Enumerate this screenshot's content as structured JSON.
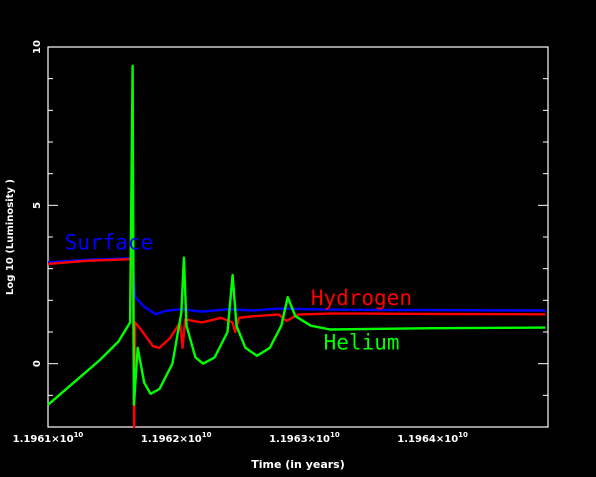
{
  "chart_data": {
    "type": "line",
    "title": "",
    "xlabel": "Time (in years)",
    "ylabel": "Log 10 (Luminosity )",
    "xlim": [
      11961000000,
      11964900000
    ],
    "ylim": [
      -2,
      10
    ],
    "x_ticks": [
      {
        "value": 11961000000,
        "mantissa": "1.1961×10",
        "exp": "10"
      },
      {
        "value": 11962000000,
        "mantissa": "1.1962×10",
        "exp": "10"
      },
      {
        "value": 11963000000,
        "mantissa": "1.1963×10",
        "exp": "10"
      },
      {
        "value": 11964000000,
        "mantissa": "1.1964×10",
        "exp": "10"
      }
    ],
    "y_ticks": [
      0,
      5,
      10
    ],
    "grid": false,
    "colors": {
      "background": "#000000",
      "axes": "#ffffff"
    },
    "series": [
      {
        "name": "Surface",
        "color": "#0000ff",
        "points": [
          [
            11961000000,
            3.2
          ],
          [
            11961300000,
            3.28
          ],
          [
            11961660000,
            3.33
          ],
          [
            11961680000,
            2.1
          ],
          [
            11961750000,
            1.8
          ],
          [
            11961840000,
            1.56
          ],
          [
            11961920000,
            1.67
          ],
          [
            11962040000,
            1.72
          ],
          [
            11962200000,
            1.64
          ],
          [
            11962400000,
            1.72
          ],
          [
            11962600000,
            1.68
          ],
          [
            11962800000,
            1.74
          ],
          [
            11963000000,
            1.72
          ],
          [
            11963400000,
            1.7
          ],
          [
            11964000000,
            1.69
          ],
          [
            11964880000,
            1.68
          ]
        ]
      },
      {
        "name": "Hydrogen",
        "color": "#ff0000",
        "points": [
          [
            11961000000,
            3.15
          ],
          [
            11961300000,
            3.25
          ],
          [
            11961655000,
            3.3
          ],
          [
            11961665000,
            1.5
          ],
          [
            11961672000,
            -2.0
          ],
          [
            11961680000,
            1.3
          ],
          [
            11961720000,
            1.1
          ],
          [
            11961820000,
            0.55
          ],
          [
            11961870000,
            0.5
          ],
          [
            11961950000,
            0.8
          ],
          [
            11962030000,
            1.3
          ],
          [
            11962050000,
            0.5
          ],
          [
            11962070000,
            1.4
          ],
          [
            11962200000,
            1.3
          ],
          [
            11962350000,
            1.45
          ],
          [
            11962440000,
            1.3
          ],
          [
            11962460000,
            1.0
          ],
          [
            11962490000,
            1.45
          ],
          [
            11962600000,
            1.5
          ],
          [
            11962800000,
            1.55
          ],
          [
            11962860000,
            1.35
          ],
          [
            11962950000,
            1.55
          ],
          [
            11963200000,
            1.58
          ],
          [
            11963500000,
            1.58
          ],
          [
            11964000000,
            1.57
          ],
          [
            11964880000,
            1.56
          ]
        ]
      },
      {
        "name": "Helium",
        "color": "#00ff00",
        "points": [
          [
            11961000000,
            -1.3
          ],
          [
            11961200000,
            -0.6
          ],
          [
            11961400000,
            0.1
          ],
          [
            11961550000,
            0.7
          ],
          [
            11961640000,
            1.3
          ],
          [
            11961660000,
            9.4
          ],
          [
            11961670000,
            -1.3
          ],
          [
            11961700000,
            0.5
          ],
          [
            11961750000,
            -0.6
          ],
          [
            11961800000,
            -0.95
          ],
          [
            11961870000,
            -0.8
          ],
          [
            11961970000,
            0.0
          ],
          [
            11962040000,
            1.6
          ],
          [
            11962060000,
            3.35
          ],
          [
            11962080000,
            1.2
          ],
          [
            11962150000,
            0.2
          ],
          [
            11962210000,
            0.0
          ],
          [
            11962300000,
            0.2
          ],
          [
            11962400000,
            1.0
          ],
          [
            11962440000,
            2.8
          ],
          [
            11962470000,
            1.2
          ],
          [
            11962540000,
            0.5
          ],
          [
            11962630000,
            0.25
          ],
          [
            11962730000,
            0.5
          ],
          [
            11962820000,
            1.2
          ],
          [
            11962870000,
            2.1
          ],
          [
            11962930000,
            1.5
          ],
          [
            11963050000,
            1.2
          ],
          [
            11963200000,
            1.08
          ],
          [
            11963600000,
            1.1
          ],
          [
            11964000000,
            1.12
          ],
          [
            11964880000,
            1.14
          ]
        ]
      }
    ],
    "annotations": [
      {
        "text": "Surface",
        "color": "#0000ff",
        "x": 11961130000,
        "y": 3.6
      },
      {
        "text": "Hydrogen",
        "color": "#ff0000",
        "x": 11963050000,
        "y": 1.85
      },
      {
        "text": "Helium",
        "color": "#00ff00",
        "x": 11963150000,
        "y": 0.45
      }
    ]
  }
}
